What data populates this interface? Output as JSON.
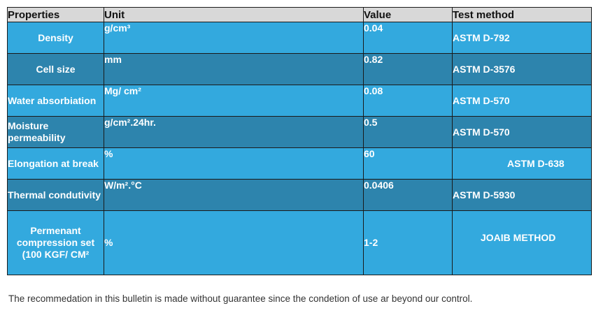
{
  "table": {
    "headers": {
      "properties": "Properties",
      "unit": "Unit",
      "value": "Value",
      "test_method": "Test method"
    },
    "rows": [
      {
        "property": "Density",
        "unit": "g/cm³",
        "value": "0.04",
        "test": "ASTM D-792"
      },
      {
        "property": "Cell size",
        "unit": "mm",
        "value": "0.82",
        "test": "ASTM D-3576"
      },
      {
        "property": "Water absorbiation",
        "unit": "Mg/ cm²",
        "value": "0.08",
        "test": "ASTM D-570"
      },
      {
        "property": "Moisture permeability",
        "unit": "g/cm².24hr.",
        "value": "0.5",
        "test": "ASTM D-570"
      },
      {
        "property": "Elongation at break",
        "unit": "%",
        "value": "60",
        "test": "ASTM D-638"
      },
      {
        "property": "Thermal condutivity",
        "unit": "W/m².°C",
        "value": "0.0406",
        "test": "ASTM D-5930"
      },
      {
        "property": "Permenant compression set (100 KGF/ CM²",
        "unit": "%",
        "value": "1-2",
        "test": "JOAIB METHOD"
      }
    ]
  },
  "footnote": "The recommedation in this bulletin is made without guarantee since the condetion of use ar beyond our control.",
  "colors": {
    "header_bg": "#d8d8d8",
    "row_light": "#33a9de",
    "row_dark": "#2d84ad",
    "border": "#1a1a1a"
  }
}
